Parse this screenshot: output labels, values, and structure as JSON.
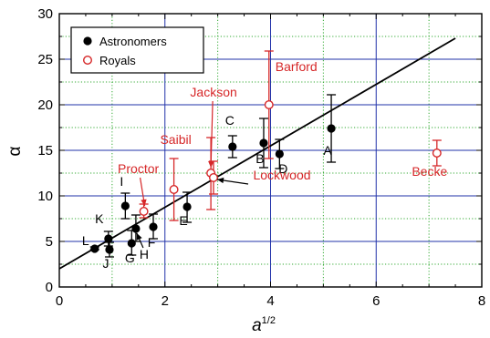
{
  "chart_data": {
    "type": "scatter",
    "xlabel": "a",
    "xlabel_sup": "1/2",
    "ylabel": "α",
    "xlim": [
      0,
      8
    ],
    "ylim": [
      0,
      30
    ],
    "xticks": [
      "0",
      "2",
      "4",
      "6",
      "8"
    ],
    "yticks": [
      "0",
      "5",
      "10",
      "15",
      "20",
      "25",
      "30"
    ],
    "grid": "major solid blue, minor dotted green",
    "legend_position": "top-left",
    "colors": {
      "astronomers": "#000000",
      "royals": "#d62728",
      "major_grid": "#2233aa",
      "minor_grid": "#33aa33"
    },
    "fit_line": {
      "x": [
        0,
        7.5
      ],
      "y": [
        2.0,
        27.3
      ]
    },
    "series": [
      {
        "name": "Astronomers",
        "marker": "filled-circle",
        "points": [
          {
            "label": "L",
            "x": 0.67,
            "y": 4.2,
            "err_low": 4.1,
            "err_high": 4.4
          },
          {
            "label": "K",
            "x": 0.93,
            "y": 5.3,
            "err_low": 4.5,
            "err_high": 6.1
          },
          {
            "label": "J",
            "x": 0.95,
            "y": 4.1,
            "err_low": 3.3,
            "err_high": 4.9
          },
          {
            "label": "I",
            "x": 1.25,
            "y": 8.9,
            "err_low": 7.5,
            "err_high": 10.3
          },
          {
            "label": "G",
            "x": 1.37,
            "y": 4.8,
            "err_low": 3.5,
            "err_high": 6.2
          },
          {
            "label": "H",
            "x": 1.45,
            "y": 6.4,
            "err_low": 5.0,
            "err_high": 7.9
          },
          {
            "label": "F",
            "x": 1.78,
            "y": 6.6,
            "err_low": 5.3,
            "err_high": 8.0
          },
          {
            "label": "E",
            "x": 2.42,
            "y": 8.8,
            "err_low": 7.1,
            "err_high": 10.4
          },
          {
            "label": "C",
            "x": 3.28,
            "y": 15.4,
            "err_low": 14.2,
            "err_high": 16.6
          },
          {
            "label": "B",
            "x": 3.87,
            "y": 15.8,
            "err_low": 13.1,
            "err_high": 18.5
          },
          {
            "label": "D",
            "x": 4.17,
            "y": 14.6,
            "err_low": 13.0,
            "err_high": 16.2
          },
          {
            "label": "A",
            "x": 5.15,
            "y": 17.4,
            "err_low": 13.7,
            "err_high": 21.1
          }
        ]
      },
      {
        "name": "Royals",
        "marker": "open-circle",
        "points": [
          {
            "label": "Proctor",
            "x": 1.6,
            "y": 8.3,
            "err_low": 7.6,
            "err_high": 9.1
          },
          {
            "label": "Saibil",
            "x": 2.17,
            "y": 10.7,
            "err_low": 7.3,
            "err_high": 14.1
          },
          {
            "label": "Jackson",
            "x": 2.87,
            "y": 12.5,
            "err_low": 8.5,
            "err_high": 16.4
          },
          {
            "label": "Lockwood",
            "x": 2.92,
            "y": 12.0,
            "err_low": 10.2,
            "err_high": 13.8
          },
          {
            "label": "Barford",
            "x": 3.97,
            "y": 20.0,
            "err_low": 14.1,
            "err_high": 25.9
          },
          {
            "label": "Becke",
            "x": 7.15,
            "y": 14.7,
            "err_low": 13.3,
            "err_high": 16.1
          }
        ]
      }
    ]
  }
}
